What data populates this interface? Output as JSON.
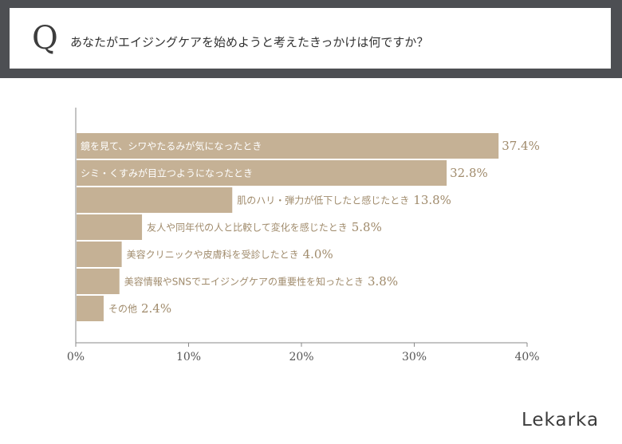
{
  "header": {
    "q_mark": "Q",
    "question": "あなたがエイジングケアを始めようと考えたきっかけは何ですか？"
  },
  "brand": {
    "name": "Lekarka"
  },
  "colors": {
    "bar": "#c5b195",
    "label_in": "#ffffff",
    "label_out": "#a08b6c",
    "axis": "#8a8a8a"
  },
  "chart_data": {
    "type": "bar",
    "orientation": "horizontal",
    "title": "あなたがエイジングケアを始めようと考えたきっかけは何ですか？",
    "categories": [
      "鏡を見て、シワやたるみが気になったとき",
      "シミ・くすみが目立つようになったとき",
      "肌のハリ・弾力が低下したと感じたとき",
      "友人や同年代の人と比較して変化を感じたとき",
      "美容クリニックや皮膚科を受診したとき",
      "美容情報やSNSでエイジングケアの重要性を知ったとき",
      "その他"
    ],
    "values": [
      37.4,
      32.8,
      13.8,
      5.8,
      4.0,
      3.8,
      2.4
    ],
    "value_labels": [
      "37.4%",
      "32.8%",
      "13.8%",
      "5.8%",
      "4.0%",
      "3.8%",
      "2.4%"
    ],
    "xlim": [
      0,
      40
    ],
    "xticks": [
      0,
      10,
      20,
      30,
      40
    ],
    "xtick_labels": [
      "0%",
      "10%",
      "20%",
      "30%",
      "40%"
    ],
    "xlabel": "",
    "ylabel": ""
  }
}
